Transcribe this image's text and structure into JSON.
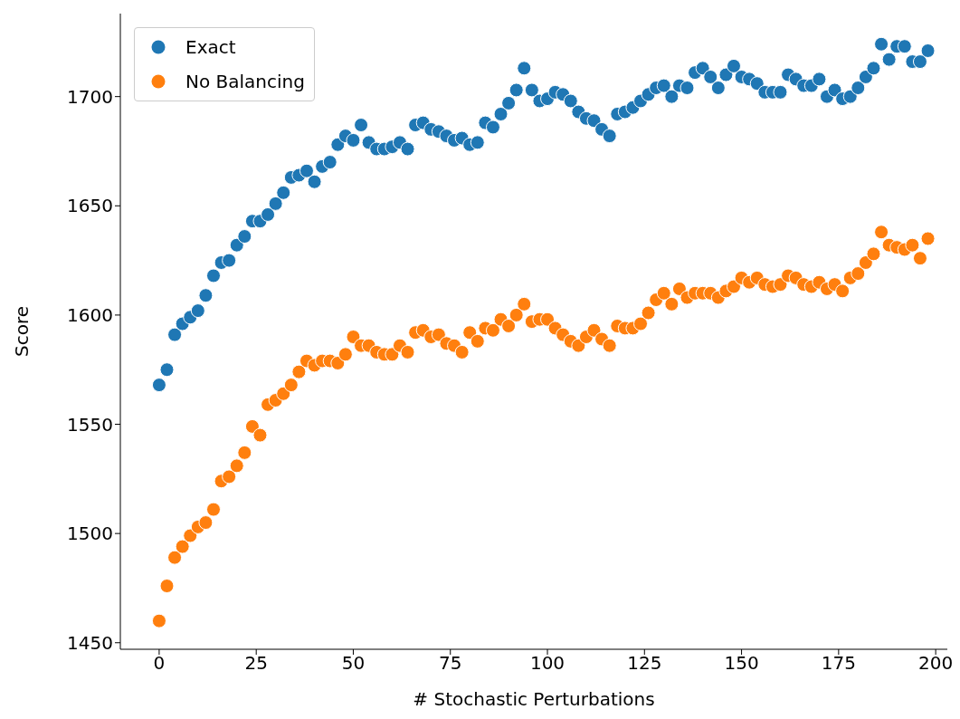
{
  "chart_data": {
    "type": "scatter",
    "xlabel": "# Stochastic Perturbations",
    "ylabel": "Score",
    "xlim": [
      -10,
      203
    ],
    "ylim": [
      1447,
      1738
    ],
    "xticks": [
      0,
      25,
      50,
      75,
      100,
      125,
      150,
      175,
      200
    ],
    "yticks": [
      1450,
      1500,
      1550,
      1600,
      1650,
      1700
    ],
    "legend": "top left",
    "marker": "circle",
    "grid": false,
    "x": [
      0,
      2,
      4,
      6,
      8,
      10,
      12,
      14,
      16,
      18,
      20,
      22,
      24,
      26,
      28,
      30,
      32,
      34,
      36,
      38,
      40,
      42,
      44,
      46,
      48,
      50,
      52,
      54,
      56,
      58,
      60,
      62,
      64,
      66,
      68,
      70,
      72,
      74,
      76,
      78,
      80,
      82,
      84,
      86,
      88,
      90,
      92,
      94,
      96,
      98,
      100,
      102,
      104,
      106,
      108,
      110,
      112,
      114,
      116,
      118,
      120,
      122,
      124,
      126,
      128,
      130,
      132,
      134,
      136,
      138,
      140,
      142,
      144,
      146,
      148,
      150,
      152,
      154,
      156,
      158,
      160,
      162,
      164,
      166,
      168,
      170,
      172,
      174,
      176,
      178,
      180,
      182,
      184,
      186,
      188,
      190,
      192,
      194,
      196,
      198
    ],
    "series": [
      {
        "name": "Exact",
        "color": "#1f77b4",
        "values": [
          1568,
          1575,
          1591,
          1596,
          1599,
          1602,
          1609,
          1618,
          1624,
          1625,
          1632,
          1636,
          1643,
          1643,
          1646,
          1651,
          1656,
          1663,
          1664,
          1666,
          1661,
          1668,
          1670,
          1678,
          1682,
          1680,
          1687,
          1679,
          1676,
          1676,
          1677,
          1679,
          1676,
          1687,
          1688,
          1685,
          1684,
          1682,
          1680,
          1681,
          1678,
          1679,
          1688,
          1686,
          1692,
          1697,
          1703,
          1713,
          1703,
          1698,
          1699,
          1702,
          1701,
          1698,
          1693,
          1690,
          1689,
          1685,
          1682,
          1692,
          1693,
          1695,
          1698,
          1701,
          1704,
          1705,
          1700,
          1705,
          1704,
          1711,
          1713,
          1709,
          1704,
          1710,
          1714,
          1709,
          1708,
          1706,
          1702,
          1702,
          1702,
          1710,
          1708,
          1705,
          1705,
          1708,
          1700,
          1703,
          1699,
          1700,
          1704,
          1709,
          1713,
          1724,
          1717,
          1723,
          1723,
          1716,
          1716,
          1721
        ]
      },
      {
        "name": "No Balancing",
        "color": "#ff7f0e",
        "values": [
          1460,
          1476,
          1489,
          1494,
          1499,
          1503,
          1505,
          1511,
          1524,
          1526,
          1531,
          1537,
          1549,
          1545,
          1559,
          1561,
          1564,
          1568,
          1574,
          1579,
          1577,
          1579,
          1579,
          1578,
          1582,
          1590,
          1586,
          1586,
          1583,
          1582,
          1582,
          1586,
          1583,
          1592,
          1593,
          1590,
          1591,
          1587,
          1586,
          1583,
          1592,
          1588,
          1594,
          1593,
          1598,
          1595,
          1600,
          1605,
          1597,
          1598,
          1598,
          1594,
          1591,
          1588,
          1586,
          1590,
          1593,
          1589,
          1586,
          1595,
          1594,
          1594,
          1596,
          1601,
          1607,
          1610,
          1605,
          1612,
          1608,
          1610,
          1610,
          1610,
          1608,
          1611,
          1613,
          1617,
          1615,
          1617,
          1614,
          1613,
          1614,
          1618,
          1617,
          1614,
          1613,
          1615,
          1612,
          1614,
          1611,
          1617,
          1619,
          1624,
          1628,
          1638,
          1632,
          1631,
          1630,
          1632,
          1626,
          1635
        ]
      }
    ]
  }
}
